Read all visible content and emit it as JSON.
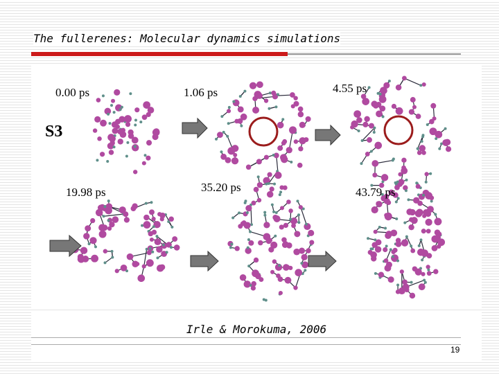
{
  "slide": {
    "title": "The fullerenes: Molecular dynamics simulations",
    "figure": {
      "label": "S3",
      "panels": [
        "0.00 ps",
        "1.06 ps",
        "4.55 ps",
        "19.98 ps",
        "35.20 ps",
        "43.79 ps"
      ]
    },
    "caption": "Irle & Morokuma, 2006",
    "page_number": "19"
  }
}
